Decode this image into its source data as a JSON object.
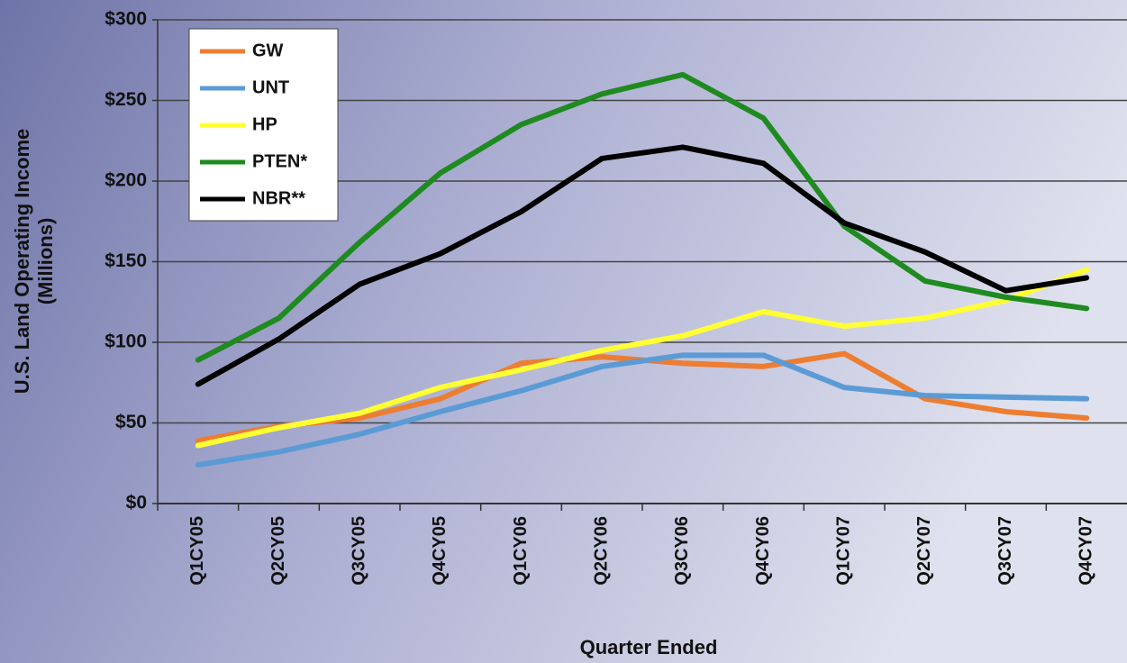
{
  "chart_data": {
    "type": "line",
    "ylabel": [
      "U.S. Land Operating Income",
      "(Millions)"
    ],
    "xlabel": "Quarter Ended",
    "categories": [
      "Q1CY05",
      "Q2CY05",
      "Q3CY05",
      "Q4CY05",
      "Q1CY06",
      "Q2CY06",
      "Q3CY06",
      "Q4CY06",
      "Q1CY07",
      "Q2CY07",
      "Q3CY07",
      "Q4CY07"
    ],
    "series": [
      {
        "name": "GW",
        "color": "#ed7d31",
        "values": [
          39,
          48,
          53,
          65,
          87,
          91,
          87,
          85,
          93,
          65,
          57,
          53
        ]
      },
      {
        "name": "UNT",
        "color": "#5b9bd5",
        "values": [
          24,
          32,
          43,
          57,
          70,
          85,
          92,
          92,
          72,
          67,
          66,
          65
        ]
      },
      {
        "name": "HP",
        "color": "#ffff33",
        "values": [
          36,
          47,
          56,
          72,
          83,
          95,
          104,
          119,
          110,
          115,
          126,
          145
        ]
      },
      {
        "name": "PTEN*",
        "color": "#1f8a1f",
        "values": [
          89,
          115,
          162,
          205,
          235,
          254,
          266,
          239,
          172,
          138,
          128,
          121
        ]
      },
      {
        "name": "NBR**",
        "color": "#000000",
        "values": [
          74,
          102,
          136,
          155,
          181,
          214,
          221,
          211,
          174,
          156,
          132,
          140
        ]
      }
    ],
    "ylim": [
      0,
      300
    ],
    "yticks": [
      {
        "value": 0,
        "label": "$0"
      },
      {
        "value": 50,
        "label": "$50"
      },
      {
        "value": 100,
        "label": "$100"
      },
      {
        "value": 150,
        "label": "$150"
      },
      {
        "value": 200,
        "label": "$200"
      },
      {
        "value": 250,
        "label": "$250"
      },
      {
        "value": 300,
        "label": "$300"
      }
    ],
    "grid": true
  }
}
